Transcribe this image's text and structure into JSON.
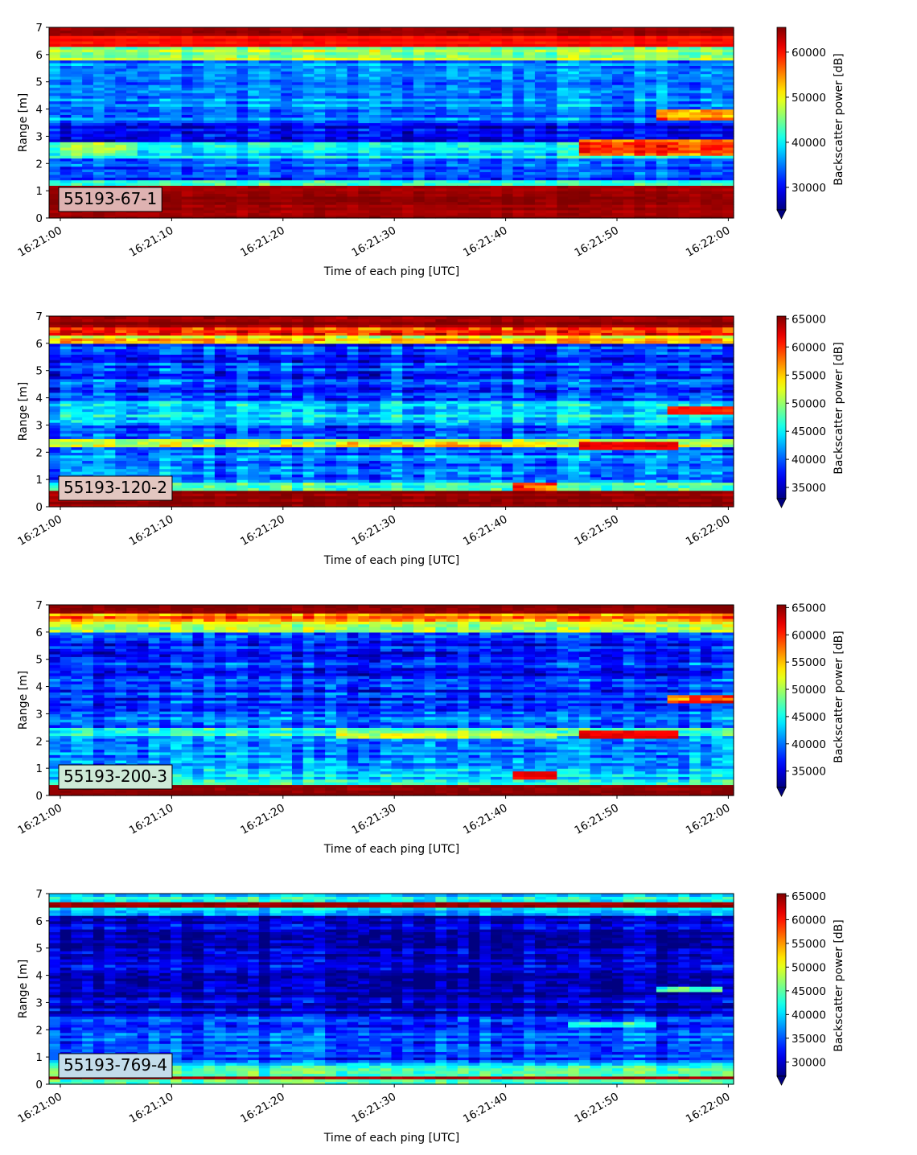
{
  "figure": {
    "colormap": "jet",
    "colors": {
      "background": "#ffffff",
      "axis": "#000000",
      "label_box_border": "#000000"
    }
  },
  "chart_data": [
    {
      "type": "heatmap",
      "label": "55193-67-1",
      "label_box_color": "#deb2b1",
      "xlabel": "Time of each ping [UTC]",
      "ylabel": "Range [m]",
      "colorbar_label": "Backscatter power [dB]",
      "xlim": [
        "16:21:00",
        "16:22:00"
      ],
      "ylim": [
        0,
        7
      ],
      "xticks": [
        "16:21:00",
        "16:21:10",
        "16:21:20",
        "16:21:30",
        "16:21:40",
        "16:21:50",
        "16:22:00"
      ],
      "yticks": [
        "0",
        "1",
        "2",
        "3",
        "4",
        "5",
        "6",
        "7"
      ],
      "clim": [
        25000,
        65500
      ],
      "colorbar_ticks": [
        30000,
        40000,
        50000,
        60000
      ],
      "colorbar_tick_labels": [
        "30000",
        "40000",
        "50000",
        "60000"
      ],
      "bands": [
        {
          "y": [
            0,
            1.2
          ],
          "value": 64500,
          "note_color": "dark red"
        },
        {
          "y": [
            1.2,
            1.4
          ],
          "value": 42000
        },
        {
          "y": [
            1.4,
            2.2
          ],
          "value": 33000
        },
        {
          "y": [
            2.2,
            2.8
          ],
          "value": 39000
        },
        {
          "y": [
            2.8,
            3.5
          ],
          "value": 30500
        },
        {
          "y": [
            3.5,
            4.0
          ],
          "value": 35500
        },
        {
          "y": [
            4.0,
            5.8
          ],
          "value": 35000
        },
        {
          "y": [
            5.8,
            6.3
          ],
          "value": 46000
        },
        {
          "y": [
            6.3,
            6.7
          ],
          "value": 60000
        },
        {
          "y": [
            6.7,
            7.0
          ],
          "value": 64500
        }
      ],
      "features": [
        {
          "x": [
            "16:21:00",
            "16:21:07"
          ],
          "y": [
            2.3,
            2.8
          ],
          "value": 46000
        },
        {
          "x": [
            "16:21:47",
            "16:22:00"
          ],
          "y": [
            2.3,
            2.9
          ],
          "value": 58000
        },
        {
          "x": [
            "16:21:54",
            "16:22:00"
          ],
          "y": [
            3.6,
            4.0
          ],
          "value": 56000
        }
      ]
    },
    {
      "type": "heatmap",
      "label": "55193-120-2",
      "label_box_color": "#e2c6c0",
      "xlabel": "Time of each ping [UTC]",
      "ylabel": "Range [m]",
      "colorbar_label": "Backscatter power [dB]",
      "xlim": [
        "16:21:00",
        "16:22:00"
      ],
      "ylim": [
        0,
        7
      ],
      "xticks": [
        "16:21:00",
        "16:21:10",
        "16:21:20",
        "16:21:30",
        "16:21:40",
        "16:21:50",
        "16:22:00"
      ],
      "yticks": [
        "0",
        "1",
        "2",
        "3",
        "4",
        "5",
        "6",
        "7"
      ],
      "clim": [
        33000,
        65500
      ],
      "colorbar_ticks": [
        35000,
        40000,
        45000,
        50000,
        55000,
        60000,
        65000
      ],
      "colorbar_tick_labels": [
        "35000",
        "40000",
        "45000",
        "50000",
        "55000",
        "60000",
        "65000"
      ],
      "bands": [
        {
          "y": [
            0,
            0.6
          ],
          "value": 65000
        },
        {
          "y": [
            0.6,
            0.9
          ],
          "value": 48000
        },
        {
          "y": [
            0.9,
            2.2
          ],
          "value": 41000
        },
        {
          "y": [
            2.2,
            2.5
          ],
          "value": 50000
        },
        {
          "y": [
            2.5,
            3.0
          ],
          "value": 40000
        },
        {
          "y": [
            3.0,
            3.9
          ],
          "value": 44500
        },
        {
          "y": [
            3.9,
            6.0
          ],
          "value": 38500
        },
        {
          "y": [
            6.0,
            6.3
          ],
          "value": 54000
        },
        {
          "y": [
            6.3,
            6.6
          ],
          "value": 60000
        },
        {
          "y": [
            6.6,
            7.0
          ],
          "value": 65000
        }
      ],
      "features": [
        {
          "x": [
            "16:21:41",
            "16:21:45"
          ],
          "y": [
            0.6,
            0.9
          ],
          "value": 60000
        },
        {
          "x": [
            "16:21:25",
            "16:21:45"
          ],
          "y": [
            2.2,
            2.4
          ],
          "value": 54000
        },
        {
          "x": [
            "16:21:47",
            "16:21:56"
          ],
          "y": [
            2.1,
            2.4
          ],
          "value": 62000
        },
        {
          "x": [
            "16:21:55",
            "16:22:00"
          ],
          "y": [
            3.4,
            3.7
          ],
          "value": 61000
        }
      ]
    },
    {
      "type": "heatmap",
      "label": "55193-200-3",
      "label_box_color": "#cde9d6",
      "xlabel": "Time of each ping [UTC]",
      "ylabel": "Range [m]",
      "colorbar_label": "Backscatter power [dB]",
      "xlim": [
        "16:21:00",
        "16:22:00"
      ],
      "ylim": [
        0,
        7
      ],
      "xticks": [
        "16:21:00",
        "16:21:10",
        "16:21:20",
        "16:21:30",
        "16:21:40",
        "16:21:50",
        "16:22:00"
      ],
      "yticks": [
        "0",
        "1",
        "2",
        "3",
        "4",
        "5",
        "6",
        "7"
      ],
      "clim": [
        32000,
        65500
      ],
      "colorbar_ticks": [
        35000,
        40000,
        45000,
        50000,
        55000,
        60000,
        65000
      ],
      "colorbar_tick_labels": [
        "35000",
        "40000",
        "45000",
        "50000",
        "55000",
        "60000",
        "65000"
      ],
      "bands": [
        {
          "y": [
            0,
            0.4
          ],
          "value": 65000
        },
        {
          "y": [
            0.4,
            0.8
          ],
          "value": 44000
        },
        {
          "y": [
            0.8,
            2.2
          ],
          "value": 41000
        },
        {
          "y": [
            2.2,
            2.5
          ],
          "value": 46000
        },
        {
          "y": [
            2.5,
            3.1
          ],
          "value": 40000
        },
        {
          "y": [
            3.1,
            6.0
          ],
          "value": 37000
        },
        {
          "y": [
            6.0,
            6.4
          ],
          "value": 52000
        },
        {
          "y": [
            6.4,
            6.7
          ],
          "value": 58000
        },
        {
          "y": [
            6.7,
            7.0
          ],
          "value": 65000
        }
      ],
      "features": [
        {
          "x": [
            "16:21:41",
            "16:21:45"
          ],
          "y": [
            0.6,
            0.9
          ],
          "value": 62000
        },
        {
          "x": [
            "16:21:25",
            "16:21:45"
          ],
          "y": [
            2.1,
            2.4
          ],
          "value": 51000
        },
        {
          "x": [
            "16:21:47",
            "16:21:56"
          ],
          "y": [
            2.1,
            2.4
          ],
          "value": 62000
        },
        {
          "x": [
            "16:21:55",
            "16:22:00"
          ],
          "y": [
            3.4,
            3.7
          ],
          "value": 58000
        }
      ]
    },
    {
      "type": "heatmap",
      "label": "55193-769-4",
      "label_box_color": "#c3dcea",
      "xlabel": "Time of each ping [UTC]",
      "ylabel": "Range [m]",
      "colorbar_label": "Backscatter power [dB]",
      "xlim": [
        "16:21:00",
        "16:22:00"
      ],
      "ylim": [
        0,
        7
      ],
      "xticks": [
        "16:21:00",
        "16:21:10",
        "16:21:20",
        "16:21:30",
        "16:21:40",
        "16:21:50",
        "16:22:00"
      ],
      "yticks": [
        "0",
        "1",
        "2",
        "3",
        "4",
        "5",
        "6",
        "7"
      ],
      "clim": [
        27000,
        65500
      ],
      "colorbar_ticks": [
        30000,
        35000,
        40000,
        45000,
        50000,
        55000,
        60000,
        65000
      ],
      "colorbar_tick_labels": [
        "30000",
        "35000",
        "40000",
        "45000",
        "50000",
        "55000",
        "60000",
        "65000"
      ],
      "bands": [
        {
          "y": [
            0,
            0.2
          ],
          "value": 45000
        },
        {
          "y": [
            0.2,
            0.35
          ],
          "value": 64000
        },
        {
          "y": [
            0.35,
            0.8
          ],
          "value": 42000
        },
        {
          "y": [
            0.8,
            2.5
          ],
          "value": 34000
        },
        {
          "y": [
            2.5,
            6.2
          ],
          "value": 29500
        },
        {
          "y": [
            6.2,
            6.45
          ],
          "value": 40000
        },
        {
          "y": [
            6.45,
            6.7
          ],
          "value": 65000
        },
        {
          "y": [
            6.7,
            7.0
          ],
          "value": 40000
        }
      ],
      "features": [
        {
          "x": [
            "16:21:46",
            "16:21:54"
          ],
          "y": [
            2.1,
            2.3
          ],
          "value": 43000
        },
        {
          "x": [
            "16:21:54",
            "16:21:59"
          ],
          "y": [
            3.4,
            3.6
          ],
          "value": 45000
        }
      ]
    }
  ]
}
